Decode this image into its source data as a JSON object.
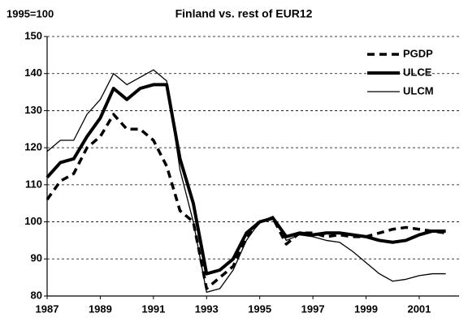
{
  "chart_data": {
    "type": "line",
    "title": "Finland vs. rest of EUR12",
    "ylabel": "1995=100",
    "x": [
      1987,
      1987.5,
      1988,
      1988.5,
      1989,
      1989.5,
      1990,
      1990.5,
      1991,
      1991.5,
      1992,
      1992.5,
      1993,
      1993.5,
      1994,
      1994.5,
      1995,
      1995.5,
      1996,
      1996.5,
      1997,
      1997.5,
      1998,
      1998.5,
      1999,
      1999.5,
      2000,
      2000.5,
      2001,
      2001.5,
      2002
    ],
    "series": [
      {
        "name": "PGDP",
        "color": "#000000",
        "line_style": "dashed",
        "values": [
          106,
          111,
          113,
          120,
          123,
          129,
          125,
          125,
          122,
          115,
          103,
          100,
          82,
          85,
          88,
          96,
          100,
          101,
          94,
          97,
          97,
          96,
          96.5,
          96,
          96,
          97,
          98,
          98.5,
          98,
          97.5,
          97
        ]
      },
      {
        "name": "ULCE",
        "color": "#000000",
        "line_style": "solid",
        "values": [
          112,
          116,
          117,
          123,
          128,
          136,
          133,
          136,
          137,
          137,
          117,
          105,
          86,
          87,
          90,
          97,
          100,
          101,
          96,
          97,
          96.5,
          97,
          97,
          96.5,
          96,
          95,
          94.5,
          95,
          96.5,
          97.5,
          97.5
        ]
      },
      {
        "name": "ULCM",
        "color": "#000000",
        "line_style": "solid",
        "values": [
          119,
          122,
          122,
          129,
          133,
          140,
          137,
          139,
          141,
          138,
          114,
          100,
          81,
          82,
          87,
          95,
          100,
          101.5,
          95,
          96.5,
          96,
          95,
          94.5,
          92,
          89,
          86,
          84,
          84.5,
          85.5,
          86,
          86
        ]
      }
    ],
    "xlim": [
      1987,
      2002.5
    ],
    "xticks": [
      1987,
      1989,
      1991,
      1993,
      1995,
      1997,
      1999,
      2001
    ],
    "ylim": [
      80,
      150
    ],
    "yticks": [
      80,
      90,
      100,
      110,
      120,
      130,
      140,
      150
    ],
    "grid": true,
    "legend_position": "upper right"
  }
}
